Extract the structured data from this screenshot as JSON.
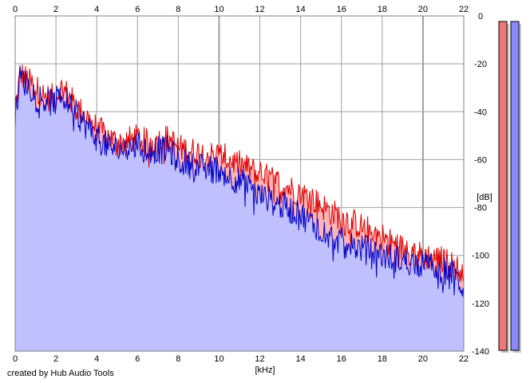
{
  "credit": "created by Hub Audio Tools",
  "chart_data": {
    "type": "area",
    "xlabel": "[kHz]",
    "ylabel": "[dB]",
    "xlim": [
      0,
      22
    ],
    "ylim": [
      -140,
      0
    ],
    "x_ticks": [
      0,
      2,
      4,
      6,
      8,
      10,
      12,
      14,
      16,
      18,
      20,
      22
    ],
    "y_ticks": [
      0,
      -20,
      -40,
      -60,
      -80,
      -100,
      -120,
      -140
    ],
    "grid": true,
    "colors": {
      "background": "#ffffff",
      "grid": "#a0a0a0",
      "left_channel_line": "#e00000",
      "left_channel_fill": "#ffb4b4",
      "right_channel_line": "#0000c8",
      "right_channel_fill": "#c0c0ff",
      "left_meter": "#f07878",
      "right_meter": "#8a8aff"
    },
    "series": [
      {
        "channel": "left",
        "x": [
          0,
          0.25,
          0.5,
          1,
          1.5,
          2,
          2.2,
          2.5,
          3,
          3.5,
          4,
          4.5,
          5,
          5.5,
          6,
          6.5,
          7,
          7.5,
          8,
          8.5,
          9,
          9.5,
          10,
          10.5,
          11,
          11.5,
          12,
          12.5,
          13,
          13.5,
          14,
          14.5,
          15,
          15.5,
          16,
          16.5,
          17,
          17.5,
          18,
          18.5,
          19,
          19.5,
          20,
          20.5,
          21,
          21.5,
          22
        ],
        "values": [
          -40,
          -24,
          -26,
          -30,
          -34,
          -34,
          -30,
          -32,
          -38,
          -42,
          -47,
          -50,
          -53,
          -52,
          -51,
          -53,
          -52,
          -51,
          -55,
          -56,
          -57,
          -58,
          -58,
          -60,
          -62,
          -64,
          -66,
          -68,
          -70,
          -72,
          -74,
          -76,
          -79,
          -82,
          -84,
          -86,
          -88,
          -90,
          -92,
          -95,
          -97,
          -99,
          -100,
          -101,
          -102,
          -104,
          -108
        ]
      },
      {
        "channel": "right",
        "x": [
          0,
          0.25,
          0.5,
          1,
          1.5,
          2,
          2.2,
          2.5,
          3,
          3.5,
          4,
          4.5,
          5,
          5.5,
          6,
          6.5,
          7,
          7.5,
          8,
          8.5,
          9,
          9.5,
          10,
          10.5,
          11,
          11.5,
          12,
          12.5,
          13,
          13.5,
          14,
          14.5,
          15,
          15.5,
          16,
          16.5,
          17,
          17.5,
          18,
          18.5,
          19,
          19.5,
          20,
          20.5,
          21,
          21.5,
          22
        ],
        "values": [
          -42,
          -25,
          -28,
          -32,
          -36,
          -36,
          -32,
          -35,
          -41,
          -46,
          -51,
          -54,
          -56,
          -55,
          -54,
          -56,
          -56,
          -56,
          -60,
          -62,
          -63,
          -64,
          -64,
          -67,
          -69,
          -72,
          -75,
          -77,
          -79,
          -81,
          -83,
          -86,
          -89,
          -92,
          -94,
          -96,
          -97,
          -98,
          -100,
          -101,
          -102,
          -103,
          -104,
          -105,
          -106,
          -108,
          -114
        ]
      }
    ],
    "level_meters": [
      {
        "channel": "left",
        "level": 1.0
      },
      {
        "channel": "right",
        "level": 1.0
      }
    ]
  }
}
